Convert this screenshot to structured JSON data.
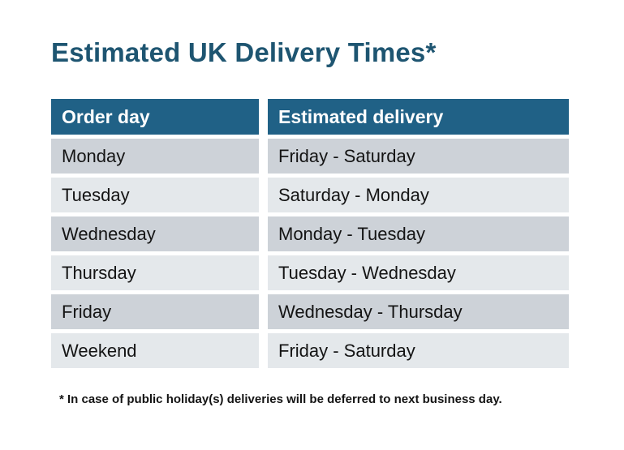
{
  "title": "Estimated UK Delivery Times*",
  "table": {
    "columns": [
      "Order day",
      "Estimated delivery"
    ],
    "rows": [
      {
        "day": "Monday",
        "delivery": "Friday - Saturday"
      },
      {
        "day": "Tuesday",
        "delivery": "Saturday - Monday"
      },
      {
        "day": "Wednesday",
        "delivery": "Monday - Tuesday"
      },
      {
        "day": "Thursday",
        "delivery": "Tuesday - Wednesday"
      },
      {
        "day": "Friday",
        "delivery": "Wednesday - Thursday"
      },
      {
        "day": "Weekend",
        "delivery": "Friday - Saturday"
      }
    ]
  },
  "footnote": "* In case of public holiday(s) deliveries will be deferred to next business day.",
  "colors": {
    "header_background": "#206186",
    "title_text": "#1E5571",
    "row_dark": "#CDD2D8",
    "row_light": "#E4E8EB",
    "header_text": "#FFFFFF",
    "body_text": "#141414"
  }
}
